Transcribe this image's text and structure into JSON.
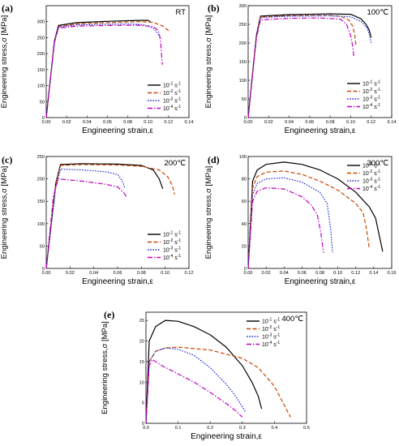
{
  "chart_data": [
    {
      "id": "a",
      "type": "line",
      "panel_label": "(a)",
      "condition": "RT",
      "xlabel": "Engineering strain,ε",
      "ylabel": "Engineering stress,σ [MPa]",
      "xlim": [
        0,
        0.14
      ],
      "ylim": [
        0,
        350
      ],
      "xticks": [
        "0.00",
        "0.02",
        "0.04",
        "0.06",
        "0.08",
        "0.10",
        "0.12",
        "0.14"
      ],
      "yticks": [
        "0",
        "50",
        "100",
        "150",
        "200",
        "250",
        "300"
      ],
      "legend": {
        "position": "right"
      },
      "series": [
        {
          "name": "10-1 s-1",
          "color": "#000000",
          "dash": "solid",
          "x": [
            0,
            0.008,
            0.012,
            0.03,
            0.06,
            0.09,
            0.1,
            0.102
          ],
          "y": [
            0,
            240,
            288,
            297,
            301,
            304,
            304,
            300
          ]
        },
        {
          "name": "10-2 s-1",
          "color": "#cc4400",
          "dash": "dashed",
          "x": [
            0,
            0.008,
            0.012,
            0.03,
            0.06,
            0.09,
            0.105,
            0.115,
            0.12
          ],
          "y": [
            0,
            238,
            285,
            293,
            297,
            300,
            298,
            285,
            272
          ]
        },
        {
          "name": "10-3 s-1",
          "color": "#1f2fd6",
          "dash": "dotted",
          "x": [
            0,
            0.008,
            0.012,
            0.03,
            0.06,
            0.08,
            0.095,
            0.105,
            0.11,
            0.112
          ],
          "y": [
            0,
            236,
            283,
            290,
            292,
            293,
            291,
            280,
            260,
            250
          ]
        },
        {
          "name": "10-4 s-1",
          "color": "#c000c0",
          "dash": "dashdot",
          "x": [
            0,
            0.008,
            0.012,
            0.03,
            0.06,
            0.09,
            0.105,
            0.11,
            0.112,
            0.113,
            0.114
          ],
          "y": [
            0,
            234,
            280,
            286,
            288,
            289,
            285,
            272,
            245,
            200,
            165
          ]
        }
      ]
    },
    {
      "id": "b",
      "type": "line",
      "panel_label": "(b)",
      "condition": "100℃",
      "xlabel": "Engineering strain,ε",
      "ylabel": "Engineering stress,σ [MPa]",
      "xlim": [
        0,
        0.14
      ],
      "ylim": [
        0,
        300
      ],
      "xticks": [
        "0.00",
        "0.02",
        "0.04",
        "0.06",
        "0.08",
        "0.10",
        "0.12",
        "0.14"
      ],
      "yticks": [
        "0",
        "50",
        "100",
        "150",
        "200",
        "250",
        "300"
      ],
      "legend": {
        "position": "right"
      },
      "series": [
        {
          "name": "10-1 s-1",
          "color": "#000000",
          "dash": "solid",
          "x": [
            0,
            0.008,
            0.012,
            0.04,
            0.08,
            0.1,
            0.11,
            0.115,
            0.118,
            0.12
          ],
          "y": [
            0,
            220,
            272,
            276,
            278,
            277,
            265,
            250,
            235,
            215
          ]
        },
        {
          "name": "10-2 s-1",
          "color": "#cc4400",
          "dash": "dashed",
          "x": [
            0,
            0.008,
            0.012,
            0.04,
            0.07,
            0.09,
            0.098,
            0.102,
            0.104,
            0.105
          ],
          "y": [
            0,
            218,
            270,
            273,
            274,
            272,
            262,
            245,
            220,
            195
          ]
        },
        {
          "name": "10-3 s-1",
          "color": "#1f2fd6",
          "dash": "dotted",
          "x": [
            0,
            0.008,
            0.012,
            0.04,
            0.08,
            0.1,
            0.11,
            0.116,
            0.118,
            0.12
          ],
          "y": [
            0,
            216,
            268,
            272,
            273,
            270,
            258,
            240,
            225,
            200
          ]
        },
        {
          "name": "10-4 s-1",
          "color": "#c000c0",
          "dash": "dashdot",
          "x": [
            0,
            0.008,
            0.012,
            0.04,
            0.07,
            0.09,
            0.096,
            0.1,
            0.102,
            0.103
          ],
          "y": [
            0,
            212,
            262,
            266,
            267,
            264,
            250,
            220,
            190,
            165
          ]
        }
      ]
    },
    {
      "id": "c",
      "type": "line",
      "panel_label": "(c)",
      "condition": "200℃",
      "xlabel": "Engineering strain,ε",
      "ylabel": "Engineering stress,σ [MPa]",
      "xlim": [
        0,
        0.12
      ],
      "ylim": [
        0,
        250
      ],
      "xticks": [
        "0.00",
        "0.02",
        "0.04",
        "0.06",
        "0.08",
        "0.10",
        "0.12"
      ],
      "yticks": [
        "0",
        "50",
        "100",
        "150",
        "200",
        "250"
      ],
      "legend": {
        "position": "bottom-right"
      },
      "series": [
        {
          "name": "10-1 s-1",
          "color": "#000000",
          "dash": "solid",
          "x": [
            0,
            0.008,
            0.012,
            0.03,
            0.06,
            0.08,
            0.09,
            0.095,
            0.098
          ],
          "y": [
            0,
            190,
            232,
            234,
            233,
            230,
            220,
            200,
            178
          ]
        },
        {
          "name": "10-2 s-1",
          "color": "#cc4400",
          "dash": "dashed",
          "x": [
            0,
            0.008,
            0.012,
            0.03,
            0.06,
            0.08,
            0.095,
            0.102,
            0.106,
            0.108
          ],
          "y": [
            0,
            188,
            230,
            232,
            231,
            228,
            220,
            205,
            185,
            165
          ]
        },
        {
          "name": "10-3 s-1",
          "color": "#1f2fd6",
          "dash": "dotted",
          "x": [
            0,
            0.008,
            0.012,
            0.03,
            0.05,
            0.06,
            0.064,
            0.066
          ],
          "y": [
            0,
            180,
            222,
            220,
            216,
            210,
            195,
            180
          ]
        },
        {
          "name": "10-4 s-1",
          "color": "#c000c0",
          "dash": "dashdot",
          "x": [
            0,
            0.006,
            0.01,
            0.03,
            0.05,
            0.06,
            0.065,
            0.068
          ],
          "y": [
            0,
            160,
            200,
            195,
            188,
            182,
            170,
            158
          ]
        }
      ]
    },
    {
      "id": "d",
      "type": "line",
      "panel_label": "(d)",
      "condition": "300℃",
      "xlabel": "Engineering strain,ε",
      "ylabel": "Engineering stress,σ [MPa]",
      "xlim": [
        0,
        0.16
      ],
      "ylim": [
        0,
        100
      ],
      "xticks": [
        "0.00",
        "0.02",
        "0.04",
        "0.06",
        "0.08",
        "0.10",
        "0.12",
        "0.14",
        "0.16"
      ],
      "yticks": [
        "0",
        "20",
        "40",
        "60",
        "80",
        "100"
      ],
      "legend": {
        "position": "top-right"
      },
      "series": [
        {
          "name": "10-1 s-1",
          "color": "#000000",
          "dash": "solid",
          "x": [
            0,
            0.005,
            0.01,
            0.02,
            0.04,
            0.06,
            0.08,
            0.1,
            0.12,
            0.135,
            0.142,
            0.146,
            0.15
          ],
          "y": [
            0,
            78,
            88,
            93,
            95,
            93,
            88,
            80,
            68,
            55,
            45,
            30,
            15
          ]
        },
        {
          "name": "10-2 s-1",
          "color": "#cc4400",
          "dash": "dashed",
          "x": [
            0,
            0.005,
            0.01,
            0.02,
            0.04,
            0.06,
            0.08,
            0.1,
            0.12,
            0.128,
            0.132,
            0.135
          ],
          "y": [
            0,
            72,
            82,
            86,
            87,
            84,
            78,
            70,
            58,
            50,
            35,
            18
          ]
        },
        {
          "name": "10-3 s-1",
          "color": "#1f2fd6",
          "dash": "dotted",
          "x": [
            0,
            0.005,
            0.01,
            0.02,
            0.04,
            0.06,
            0.08,
            0.088,
            0.092,
            0.094
          ],
          "y": [
            0,
            66,
            76,
            80,
            81,
            77,
            68,
            58,
            35,
            14
          ]
        },
        {
          "name": "10-4 s-1",
          "color": "#c000c0",
          "dash": "dashdot",
          "x": [
            0,
            0.005,
            0.01,
            0.02,
            0.04,
            0.06,
            0.07,
            0.077,
            0.081,
            0.084
          ],
          "y": [
            0,
            60,
            69,
            72,
            71,
            64,
            57,
            48,
            32,
            14
          ]
        }
      ]
    },
    {
      "id": "e",
      "type": "line",
      "panel_label": "(e)",
      "condition": "400℃",
      "xlabel": "Engineering strain,ε",
      "ylabel": "Engineering stress,σ [MPa]",
      "xlim": [
        0,
        0.5
      ],
      "ylim": [
        0,
        27
      ],
      "xticks": [
        "0.0",
        "0.1",
        "0.2",
        "0.3",
        "0.4",
        "0.5"
      ],
      "yticks": [
        "0",
        "5",
        "10",
        "15",
        "20",
        "25"
      ],
      "legend": {
        "position": "top-right"
      },
      "series": [
        {
          "name": "10-1 s-1",
          "color": "#000000",
          "dash": "solid",
          "x": [
            0,
            0.01,
            0.03,
            0.06,
            0.1,
            0.15,
            0.2,
            0.25,
            0.3,
            0.33,
            0.35,
            0.36
          ],
          "y": [
            0,
            20,
            23.5,
            25,
            24.8,
            23.5,
            21.5,
            18.5,
            14,
            10,
            6.5,
            3.5
          ]
        },
        {
          "name": "10-2 s-1",
          "color": "#cc4400",
          "dash": "dashed",
          "x": [
            0,
            0.01,
            0.03,
            0.06,
            0.1,
            0.2,
            0.3,
            0.35,
            0.4,
            0.42,
            0.44,
            0.45
          ],
          "y": [
            0,
            15,
            17.5,
            18.3,
            18.5,
            17.8,
            15.8,
            13.5,
            9,
            6,
            3,
            1.5
          ]
        },
        {
          "name": "10-3 s-1",
          "color": "#1f2fd6",
          "dash": "dotted",
          "x": [
            0,
            0.01,
            0.03,
            0.06,
            0.1,
            0.15,
            0.2,
            0.25,
            0.28,
            0.3,
            0.31
          ],
          "y": [
            0,
            15,
            17.5,
            18.3,
            18,
            16.5,
            13.5,
            9.5,
            6.5,
            4,
            2.8
          ]
        },
        {
          "name": "10-4 s-1",
          "color": "#c000c0",
          "dash": "dashdot",
          "x": [
            0,
            0.01,
            0.02,
            0.05,
            0.1,
            0.15,
            0.2,
            0.25,
            0.28,
            0.3
          ],
          "y": [
            0,
            14,
            15.5,
            14,
            12,
            10,
            7.5,
            4.8,
            3,
            1.5
          ]
        }
      ]
    }
  ]
}
